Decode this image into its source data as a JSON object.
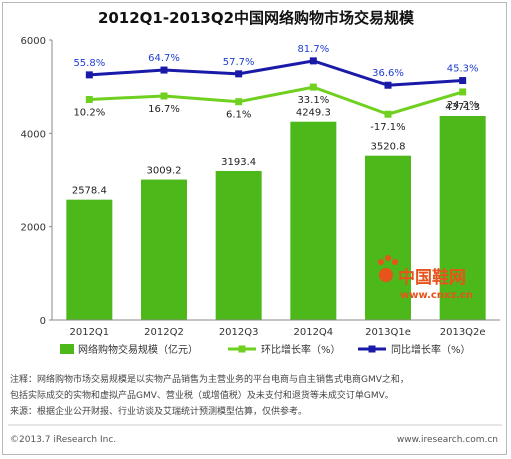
{
  "chart_data": {
    "type": "bar+line",
    "title": "2012Q1-2013Q2中国网络购物市场交易规模",
    "categories": [
      "2012Q1",
      "2012Q2",
      "2012Q3",
      "2012Q4",
      "2013Q1e",
      "2013Q2e"
    ],
    "ylim": [
      0,
      6000
    ],
    "yticks": [
      0,
      2000,
      4000,
      6000
    ],
    "series": [
      {
        "name": "网络购物交易规模（亿元）",
        "type": "bar",
        "color": "#4db819",
        "values": [
          2578.4,
          3009.2,
          3193.4,
          4249.3,
          3520.8,
          4371.3
        ],
        "labels": [
          "2578.4",
          "3009.2",
          "3193.4",
          "4249.3",
          "3520.8",
          "4371.3"
        ]
      },
      {
        "name": "环比增长率（%）",
        "type": "line",
        "color": "#6fd01f",
        "values": [
          10.2,
          16.7,
          6.1,
          33.1,
          -17.1,
          24.2
        ],
        "labels": [
          "10.2%",
          "16.7%",
          "6.1%",
          "33.1%",
          "-17.1%",
          "24.2%"
        ]
      },
      {
        "name": "同比增长率（%）",
        "type": "line",
        "color": "#1a1aa8",
        "values": [
          55.8,
          64.7,
          57.7,
          81.7,
          36.6,
          45.3
        ],
        "labels": [
          "55.8%",
          "64.7%",
          "57.7%",
          "81.7%",
          "36.6%",
          "45.3%"
        ]
      }
    ],
    "grid": false,
    "legend": "bottom"
  },
  "notes": [
    "注释：网络购物市场交易规模是以实物产品销售为主营业务的平台电商与自主销售式电商GMV之和，",
    "包括实际成交的实物和虚拟产品GMV、营业税（或增值税）及未支付和退货等未成交订单GMV。",
    "来源：根据企业公开财报、行业访谈及艾瑞统计预测模型估算，仅供参考。"
  ],
  "footer": {
    "left": "©2013.7 iResearch Inc.",
    "right": "www.iresearch.com.cn"
  },
  "watermark": {
    "name": "中国鞋网",
    "url": "www.cnxz.cn"
  }
}
